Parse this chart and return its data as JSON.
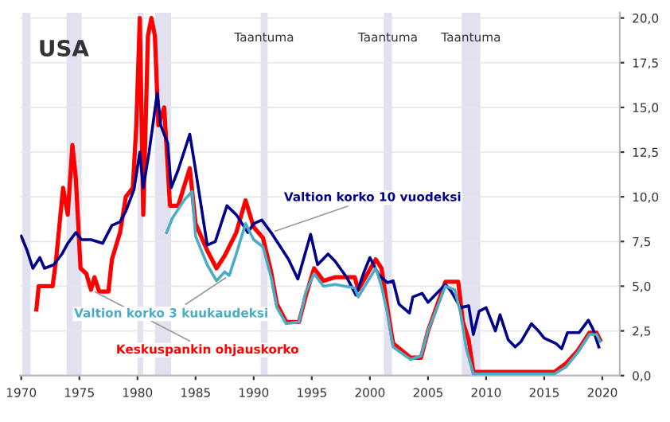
{
  "chart_data": {
    "type": "line",
    "title": "USA",
    "xlim": [
      1969.9,
      2021.5
    ],
    "xticks": [
      1970,
      1975,
      1980,
      1985,
      1990,
      1995,
      2000,
      2005,
      2010,
      2015,
      2020
    ],
    "ylim": [
      0,
      20.3
    ],
    "yticks": [
      {
        "value": 0,
        "label": "0,0"
      },
      {
        "value": 2.5,
        "label": "2,5"
      },
      {
        "value": 5,
        "label": "5,0"
      },
      {
        "value": 7.5,
        "label": "7,5"
      },
      {
        "value": 10,
        "label": "10,0"
      },
      {
        "value": 12.5,
        "label": "12,5"
      },
      {
        "value": 15,
        "label": "15,0"
      },
      {
        "value": 17.5,
        "label": "17,5"
      },
      {
        "value": 20,
        "label": "20,0"
      }
    ],
    "grid": "y",
    "legend": false,
    "marker": "none",
    "line_style": "solid",
    "series": [
      {
        "name": "Keskuspankin ohjauskorko",
        "color": "#ff0000",
        "x": [
          1971.3,
          1971.5,
          1972.7,
          1973.0,
          1973.6,
          1974.0,
          1974.4,
          1974.7,
          1975.1,
          1975.6,
          1976.0,
          1976.3,
          1976.7,
          1977.5,
          1977.8,
          1978.5,
          1979.0,
          1979.6,
          1979.9,
          1980.2,
          1980.5,
          1980.9,
          1981.2,
          1981.5,
          1981.8,
          1982.3,
          1982.8,
          1983.5,
          1984.5,
          1985.0,
          1986.0,
          1986.8,
          1987.5,
          1988.5,
          1989.3,
          1990.0,
          1990.8,
          1991.5,
          1992.0,
          1992.8,
          1993.9,
          1994.5,
          1995.2,
          1996.0,
          1997.0,
          1998.7,
          1999.0,
          2000.5,
          2001.0,
          2001.5,
          2002.0,
          2003.5,
          2004.4,
          2005.0,
          2006.5,
          2007.6,
          2008.0,
          2008.5,
          2008.9,
          2015.9,
          2016.9,
          2017.9,
          2018.9,
          2019.5,
          2019.8
        ],
        "values": [
          3.7,
          5.0,
          5.0,
          6.5,
          10.5,
          9.0,
          12.9,
          11.0,
          6.0,
          5.7,
          4.8,
          5.5,
          4.7,
          4.7,
          6.5,
          8.0,
          10.0,
          10.5,
          14.0,
          20.0,
          9.0,
          19.0,
          20.0,
          19.0,
          14.0,
          15.0,
          9.5,
          9.5,
          11.6,
          8.5,
          7.0,
          6.0,
          6.7,
          8.0,
          9.8,
          8.3,
          7.7,
          5.8,
          4.0,
          3.0,
          3.0,
          4.5,
          6.0,
          5.3,
          5.5,
          5.5,
          4.8,
          6.5,
          6.0,
          3.8,
          1.8,
          1.0,
          1.0,
          2.5,
          5.25,
          5.25,
          3.0,
          2.0,
          0.2,
          0.2,
          0.7,
          1.4,
          2.4,
          2.4,
          2.0
        ]
      },
      {
        "name": "Valtion korko 3 kuukaudeksi",
        "color": "#4bacc6",
        "x": [
          1982.5,
          1983.0,
          1984.0,
          1984.7,
          1985.0,
          1986.0,
          1986.8,
          1987.5,
          1987.9,
          1988.5,
          1989.3,
          1990.0,
          1990.8,
          1991.5,
          1992.0,
          1992.8,
          1993.9,
          1994.5,
          1995.2,
          1996.0,
          1997.0,
          1998.7,
          1999.0,
          2000.5,
          2001.0,
          2001.5,
          2002.0,
          2003.5,
          2004.4,
          2005.0,
          2006.5,
          2007.3,
          2007.8,
          2008.3,
          2008.9,
          2015.9,
          2016.9,
          2017.9,
          2018.9,
          2019.5,
          2019.8
        ],
        "values": [
          8.0,
          8.8,
          9.8,
          10.3,
          7.8,
          6.2,
          5.3,
          5.8,
          5.6,
          6.8,
          8.5,
          7.6,
          7.2,
          5.5,
          3.8,
          2.9,
          3.0,
          4.7,
          5.7,
          5.0,
          5.1,
          4.9,
          4.4,
          6.0,
          5.0,
          3.5,
          1.6,
          0.9,
          1.1,
          2.5,
          5.0,
          4.8,
          3.5,
          1.5,
          0.1,
          0.1,
          0.5,
          1.3,
          2.3,
          2.3,
          1.9
        ]
      },
      {
        "name": "Valtion korko 10 vuodeksi",
        "color": "#00008b",
        "x": [
          1970.0,
          1970.5,
          1971.0,
          1971.6,
          1972.0,
          1972.8,
          1973.5,
          1974.0,
          1974.7,
          1975.2,
          1976.0,
          1977.0,
          1977.8,
          1978.5,
          1979.0,
          1979.7,
          1980.2,
          1980.5,
          1981.0,
          1981.7,
          1982.0,
          1982.6,
          1982.9,
          1983.5,
          1984.5,
          1985.0,
          1986.0,
          1986.7,
          1987.7,
          1988.5,
          1989.5,
          1990.0,
          1990.7,
          1991.5,
          1992.5,
          1993.0,
          1993.8,
          1994.9,
          1995.5,
          1996.4,
          1997.0,
          1998.0,
          1998.8,
          1999.5,
          2000.0,
          2000.8,
          2001.5,
          2002.0,
          2002.5,
          2003.4,
          2003.7,
          2004.5,
          2005.0,
          2006.5,
          2007.0,
          2007.8,
          2008.5,
          2008.9,
          2009.4,
          2010.0,
          2010.8,
          2011.2,
          2011.9,
          2012.5,
          2013.0,
          2013.9,
          2014.5,
          2015.0,
          2016.0,
          2016.5,
          2017.0,
          2018.0,
          2018.8,
          2019.2,
          2019.7
        ],
        "values": [
          7.8,
          7.0,
          6.0,
          6.6,
          6.0,
          6.2,
          6.8,
          7.4,
          8.0,
          7.6,
          7.6,
          7.4,
          8.4,
          8.6,
          9.2,
          10.4,
          12.5,
          10.5,
          12.5,
          15.8,
          14.0,
          13.0,
          10.5,
          11.5,
          13.5,
          11.5,
          7.3,
          7.5,
          9.5,
          9.0,
          8.0,
          8.5,
          8.7,
          8.0,
          7.0,
          6.5,
          5.4,
          7.9,
          6.2,
          6.8,
          6.4,
          5.5,
          4.5,
          5.8,
          6.6,
          5.6,
          5.2,
          5.3,
          4.0,
          3.5,
          4.4,
          4.6,
          4.1,
          5.1,
          4.7,
          3.8,
          3.9,
          2.3,
          3.6,
          3.8,
          2.5,
          3.4,
          2.0,
          1.6,
          1.9,
          2.9,
          2.5,
          2.1,
          1.8,
          1.5,
          2.4,
          2.4,
          3.1,
          2.6,
          1.6
        ]
      }
    ],
    "bands": [
      {
        "axis": "x",
        "from": 1970.1,
        "to": 1970.8,
        "color": "#e1e1f0"
      },
      {
        "axis": "x",
        "from": 1973.9,
        "to": 1975.2,
        "color": "#e1e1f0"
      },
      {
        "axis": "x",
        "from": 1980.0,
        "to": 1980.5,
        "color": "#e1e1f0"
      },
      {
        "axis": "x",
        "from": 1981.5,
        "to": 1982.9,
        "color": "#e1e1f0"
      },
      {
        "axis": "x",
        "from": 1990.6,
        "to": 1991.2,
        "label": "Taantuma",
        "color": "#e1e1f0"
      },
      {
        "axis": "x",
        "from": 2001.2,
        "to": 2001.9,
        "label": "Taantuma",
        "color": "#e1e1f0"
      },
      {
        "axis": "x",
        "from": 2007.9,
        "to": 2009.5,
        "label": "Taantuma",
        "color": "#e1e1f0"
      }
    ]
  }
}
